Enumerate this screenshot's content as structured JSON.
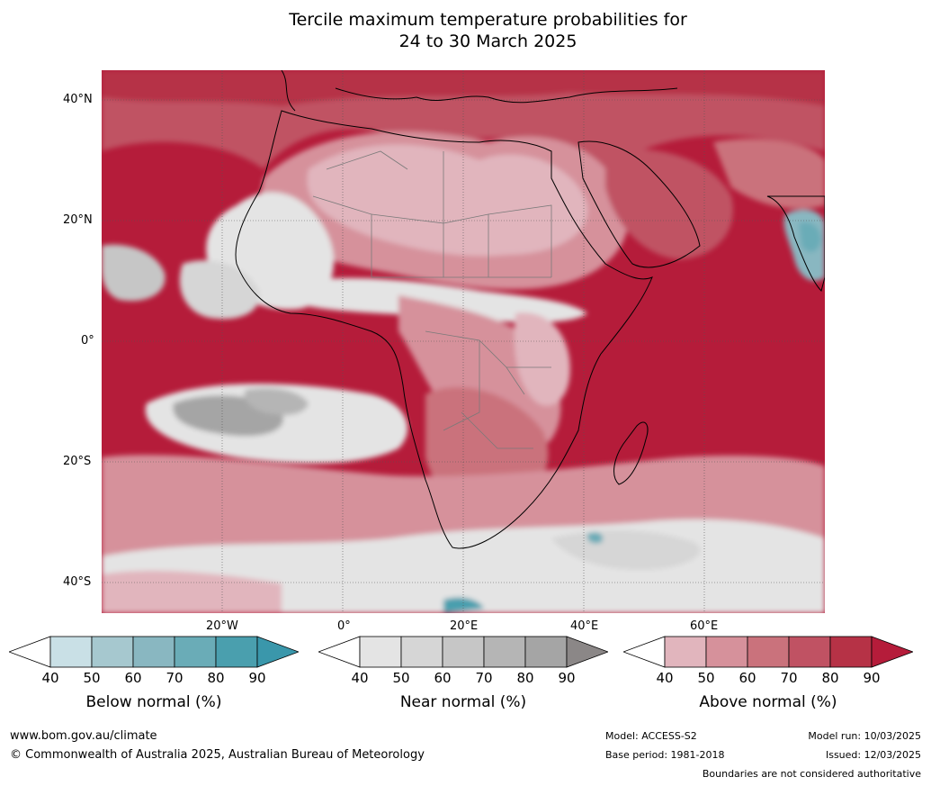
{
  "title": {
    "line1": "Tercile maximum temperature probabilities for",
    "line2": "24 to 30 March 2025"
  },
  "map": {
    "lat_labels": [
      "40°N",
      "20°N",
      "0°",
      "20°S",
      "40°S"
    ],
    "lon_labels": [
      "20°W",
      "0°",
      "20°E",
      "40°E",
      "60°E"
    ]
  },
  "legends": [
    {
      "name": "Below normal (%)",
      "ticks": [
        "40",
        "50",
        "60",
        "70",
        "80",
        "90"
      ],
      "colors": [
        "#ffffff",
        "#c9e0e6",
        "#a6c8cf",
        "#89b7c1",
        "#6aacb7",
        "#4a9fae",
        "#3a97ab"
      ]
    },
    {
      "name": "Near normal (%)",
      "ticks": [
        "40",
        "50",
        "60",
        "70",
        "80",
        "90"
      ],
      "colors": [
        "#ffffff",
        "#e4e4e4",
        "#d6d6d6",
        "#c6c6c6",
        "#b5b5b5",
        "#a5a5a5",
        "#8b8787"
      ]
    },
    {
      "name": "Above normal (%)",
      "ticks": [
        "40",
        "50",
        "60",
        "70",
        "80",
        "90"
      ],
      "colors": [
        "#ffffff",
        "#e1b5bd",
        "#d6919b",
        "#ca727c",
        "#c05263",
        "#b63246",
        "#b51c3a"
      ]
    }
  ],
  "footer": {
    "website": "www.bom.gov.au/climate",
    "copyright": "© Commonwealth of Australia 2025, Australian Bureau of Meteorology",
    "model": "Model: ACCESS-S2",
    "base_period": "Base period: 1981-2018",
    "model_run": "Model run: 10/03/2025",
    "issued": "Issued: 12/03/2025",
    "disclaimer": "Boundaries are not considered authoritative"
  }
}
